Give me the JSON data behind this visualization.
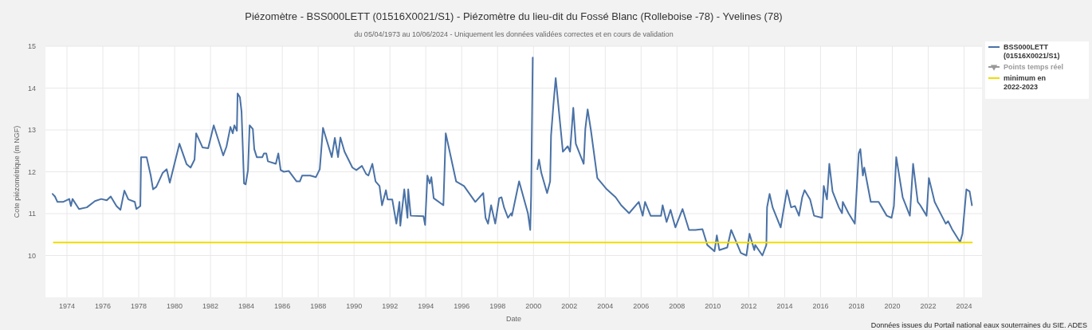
{
  "chart_data": {
    "type": "line",
    "title": "Piézomètre - BSS000LETT (01516X0021/S1) - Piézomètre du lieu-dit du Fossé Blanc (Rolleboise -78) - Yvelines (78)",
    "subtitle": "du 05/04/1973 au 10/06/2024 - Uniquement les données validées correctes et en cours de validation",
    "xlabel": "Date",
    "ylabel": "Cote piézométrique (m NGF)",
    "annotations": [
      "Données issues du Portail national eaux souterraines du SIE. ADES"
    ],
    "xlim": [
      1972.8,
      2025.0
    ],
    "xticks": [
      1974,
      1976,
      1978,
      1980,
      1982,
      1984,
      1986,
      1988,
      1990,
      1992,
      1994,
      1996,
      1998,
      2000,
      2002,
      2004,
      2006,
      2008,
      2010,
      2012,
      2014,
      2016,
      2018,
      2020,
      2022,
      2024
    ],
    "ylim": [
      9,
      15
    ],
    "yticks": [
      10,
      11,
      12,
      13,
      14,
      15
    ],
    "grid": true,
    "legend": "top right",
    "line_style": "solid",
    "series": [
      {
        "name": "BSS000LETT (01516X0021/S1)",
        "color": "#4a72a6",
        "x": [
          1973.2,
          1973.33,
          1973.47,
          1973.78,
          1974.13,
          1974.22,
          1974.31,
          1974.67,
          1975.11,
          1975.56,
          1975.91,
          1976.22,
          1976.44,
          1976.76,
          1976.98,
          1977.2,
          1977.42,
          1977.78,
          1977.87,
          1978.09,
          1978.13,
          1978.44,
          1978.67,
          1978.8,
          1978.98,
          1979.33,
          1979.56,
          1979.73,
          1980.27,
          1980.67,
          1980.89,
          1981.11,
          1981.2,
          1981.56,
          1981.87,
          1982.18,
          1982.71,
          1982.89,
          1983.11,
          1983.24,
          1983.33,
          1983.47,
          1983.51,
          1983.64,
          1983.73,
          1983.87,
          1983.96,
          1984.09,
          1984.18,
          1984.36,
          1984.44,
          1984.58,
          1984.89,
          1984.98,
          1985.11,
          1985.2,
          1985.64,
          1985.78,
          1985.91,
          1986.09,
          1986.36,
          1986.8,
          1986.98,
          1987.11,
          1987.56,
          1987.87,
          1988.09,
          1988.27,
          1988.36,
          1988.76,
          1988.93,
          1989.11,
          1989.24,
          1989.47,
          1989.91,
          1990.13,
          1990.44,
          1990.67,
          1990.8,
          1991.02,
          1991.2,
          1991.42,
          1991.56,
          1991.78,
          1991.87,
          1992.13,
          1992.36,
          1992.53,
          1992.58,
          1992.8,
          1992.98,
          1993.02,
          1993.16,
          1993.87,
          1993.96,
          1994.09,
          1994.22,
          1994.31,
          1994.44,
          1994.98,
          1995.11,
          1995.69,
          1996.13,
          1996.76,
          1997.2,
          1997.33,
          1997.47,
          1997.64,
          1997.87,
          1998.09,
          1998.22,
          1998.36,
          1998.58,
          1998.76,
          1998.8,
          1999.2,
          1999.69,
          1999.82,
          1999.87,
          1999.96,
          2000.1,
          2000.22,
          2000.31,
          2000.44,
          2000.76,
          2000.93,
          2000.98,
          2001.11,
          2001.24,
          2001.64,
          2001.91,
          2002.04,
          2002.22,
          2002.36,
          2002.8,
          2002.89,
          2003.02,
          2003.2,
          2003.56,
          2004.09,
          2004.58,
          2004.89,
          2005.33,
          2005.87,
          2006.09,
          2006.22,
          2006.53,
          2007.11,
          2007.2,
          2007.42,
          2007.64,
          2007.91,
          2008.31,
          2008.67,
          2009.02,
          2009.42,
          2009.69,
          2010.09,
          2010.22,
          2010.36,
          2010.8,
          2011.02,
          2011.56,
          2011.87,
          2012.04,
          2012.31,
          2012.36,
          2012.76,
          2012.98,
          2013.02,
          2013.16,
          2013.33,
          2013.78,
          2013.91,
          2014.13,
          2014.36,
          2014.58,
          2014.8,
          2014.98,
          2015.11,
          2015.42,
          2015.64,
          2016.09,
          2016.18,
          2016.36,
          2016.49,
          2016.67,
          2017.02,
          2017.2,
          2017.24,
          2017.56,
          2017.91,
          2018.13,
          2018.22,
          2018.36,
          2018.44,
          2018.8,
          2019.24,
          2019.69,
          2019.96,
          2020.09,
          2020.22,
          2020.58,
          2020.98,
          2021.16,
          2021.42,
          2021.56,
          2021.91,
          2022.04,
          2022.36,
          2022.98,
          2023.11,
          2023.33,
          2023.78,
          2023.91,
          2024.13,
          2024.31,
          2024.44
        ],
        "values": [
          11.47,
          11.41,
          11.28,
          11.28,
          11.35,
          11.18,
          11.35,
          11.11,
          11.15,
          11.3,
          11.35,
          11.32,
          11.41,
          11.18,
          11.09,
          11.55,
          11.34,
          11.28,
          11.11,
          11.18,
          12.35,
          12.35,
          11.91,
          11.58,
          11.64,
          11.97,
          12.06,
          11.74,
          12.67,
          12.18,
          12.1,
          12.29,
          12.92,
          12.58,
          12.56,
          13.11,
          12.39,
          12.6,
          13.07,
          12.92,
          13.11,
          12.98,
          13.87,
          13.78,
          13.44,
          11.72,
          11.7,
          12.04,
          13.11,
          13.02,
          12.54,
          12.35,
          12.35,
          12.44,
          12.44,
          12.25,
          12.19,
          12.44,
          12.04,
          12.0,
          12.02,
          11.77,
          11.77,
          11.91,
          11.91,
          11.87,
          12.06,
          13.05,
          12.92,
          12.35,
          12.81,
          12.35,
          12.82,
          12.48,
          12.1,
          12.04,
          12.14,
          11.95,
          11.91,
          12.19,
          11.77,
          11.66,
          11.2,
          11.56,
          11.34,
          11.34,
          10.76,
          11.28,
          10.71,
          11.58,
          10.9,
          11.58,
          10.95,
          10.94,
          10.73,
          11.91,
          11.72,
          11.87,
          11.37,
          11.2,
          12.92,
          11.77,
          11.66,
          11.28,
          11.49,
          10.9,
          10.76,
          11.2,
          10.76,
          11.37,
          11.39,
          11.15,
          10.9,
          11.01,
          10.95,
          11.77,
          11.01,
          10.61,
          11.43,
          14.73,
          null,
          12.06,
          12.29,
          11.97,
          11.49,
          11.77,
          12.86,
          13.59,
          14.24,
          12.48,
          12.61,
          12.48,
          13.53,
          12.67,
          12.19,
          13.02,
          13.49,
          13.0,
          11.85,
          11.58,
          11.39,
          11.2,
          11.01,
          11.28,
          10.95,
          11.28,
          10.95,
          10.95,
          11.2,
          10.8,
          11.09,
          10.67,
          11.11,
          10.61,
          10.61,
          10.63,
          10.25,
          10.1,
          10.48,
          10.13,
          10.19,
          10.61,
          10.06,
          10.0,
          10.52,
          10.13,
          10.25,
          10.0,
          10.25,
          11.15,
          11.47,
          11.15,
          10.67,
          11.01,
          11.56,
          11.15,
          11.18,
          10.95,
          11.39,
          11.56,
          11.34,
          10.95,
          10.9,
          11.66,
          11.34,
          12.19,
          11.53,
          11.15,
          11.01,
          11.28,
          11.01,
          10.76,
          12.44,
          12.54,
          11.91,
          12.1,
          11.28,
          11.28,
          10.95,
          10.9,
          11.18,
          12.35,
          11.39,
          10.95,
          12.19,
          11.28,
          11.2,
          10.95,
          11.85,
          11.28,
          10.76,
          10.82,
          10.63,
          10.32,
          10.52,
          11.58,
          11.53,
          11.2
        ]
      },
      {
        "name": "Points temps réel",
        "color": "#9a9a9a",
        "marker": "triangle"
      },
      {
        "name": "minimum en 2022-2023",
        "color": "#f0dc00",
        "x": [
          1973.26,
          2024.44
        ],
        "values": [
          10.31,
          10.31
        ]
      }
    ]
  }
}
